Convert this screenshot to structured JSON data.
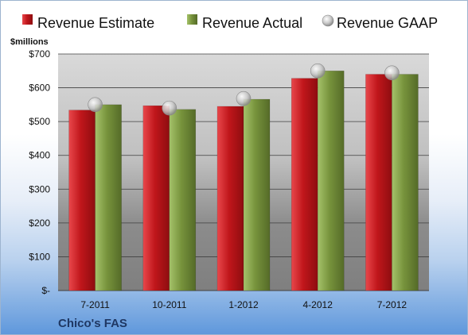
{
  "chart_data": {
    "type": "bar",
    "ylabel": "$millions",
    "company": "Chico's FAS",
    "categories": [
      "7-2011",
      "10-2011",
      "1-2012",
      "4-2012",
      "7-2012"
    ],
    "y_ticks": [
      "$-",
      "$100",
      "$200",
      "$300",
      "$400",
      "$500",
      "$600",
      "$700"
    ],
    "ylim": [
      0,
      700
    ],
    "grid": true,
    "legend_position": "top",
    "series": [
      {
        "name": "Revenue Estimate",
        "mark": "bar",
        "color": "#c0161b",
        "values": [
          534,
          547,
          545,
          628,
          640
        ]
      },
      {
        "name": "Revenue Actual",
        "mark": "bar",
        "color": "#77933c",
        "values": [
          550,
          536,
          566,
          650,
          640
        ]
      },
      {
        "name": "Revenue GAAP",
        "mark": "marker",
        "color": "#bfbfbf",
        "values": [
          550,
          540,
          568,
          650,
          644
        ]
      }
    ]
  }
}
